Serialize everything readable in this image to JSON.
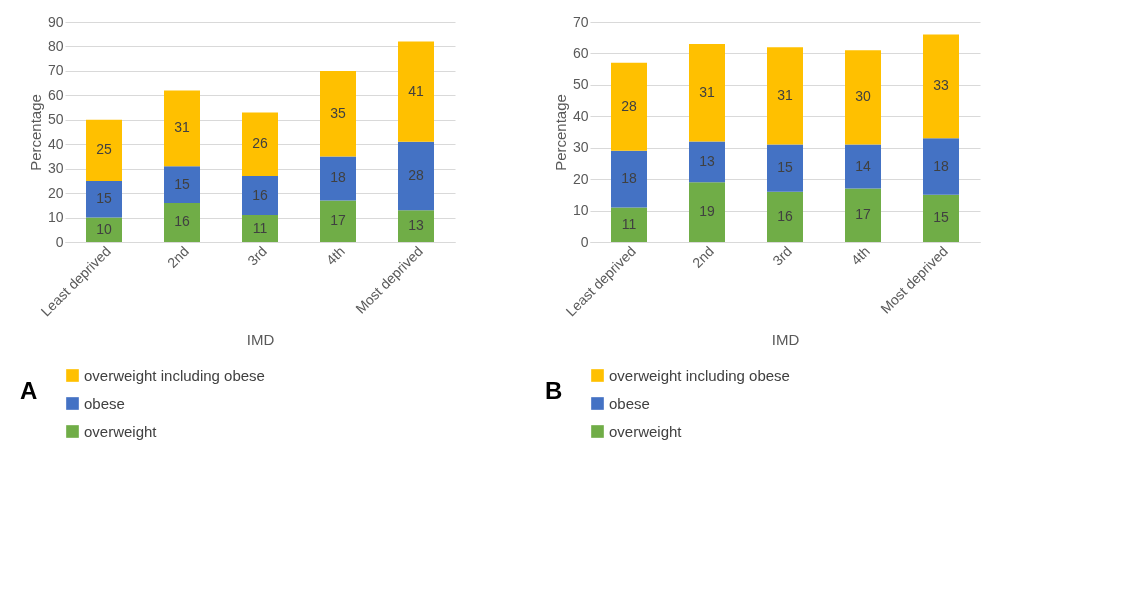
{
  "chart_data": [
    {
      "type": "bar",
      "stacked": true,
      "data_labels": true,
      "xlabel": "IMD",
      "ylabel": "Percentage",
      "categories": [
        "Least deprived",
        "2nd",
        "3rd",
        "4th",
        "Most deprived"
      ],
      "ylim": [
        0,
        90
      ],
      "yticks": [
        0,
        10,
        20,
        30,
        40,
        50,
        60,
        70,
        80,
        90
      ],
      "grid": "y",
      "legend": "bottom",
      "annotations": [
        "A"
      ],
      "series": [
        {
          "name": "overweight",
          "color": "#70ad47",
          "values": [
            10,
            16,
            11,
            17,
            13
          ]
        },
        {
          "name": "obese",
          "color": "#4472c4",
          "values": [
            15,
            15,
            16,
            18,
            28
          ]
        },
        {
          "name": "overweight including obese",
          "color": "#ffc000",
          "values": [
            25,
            31,
            26,
            35,
            41
          ]
        }
      ]
    },
    {
      "type": "bar",
      "stacked": true,
      "data_labels": true,
      "xlabel": "IMD",
      "ylabel": "Percentage",
      "categories": [
        "Least deprived",
        "2nd",
        "3rd",
        "4th",
        "Most deprived"
      ],
      "ylim": [
        0,
        70
      ],
      "yticks": [
        0,
        10,
        20,
        30,
        40,
        50,
        60,
        70
      ],
      "grid": "y",
      "legend": "bottom",
      "annotations": [
        "B"
      ],
      "series": [
        {
          "name": "overweight",
          "color": "#70ad47",
          "values": [
            11,
            19,
            16,
            17,
            15
          ]
        },
        {
          "name": "obese",
          "color": "#4472c4",
          "values": [
            18,
            13,
            15,
            14,
            18
          ]
        },
        {
          "name": "overweight including obese",
          "color": "#ffc000",
          "values": [
            28,
            31,
            31,
            30,
            33
          ]
        }
      ]
    }
  ]
}
